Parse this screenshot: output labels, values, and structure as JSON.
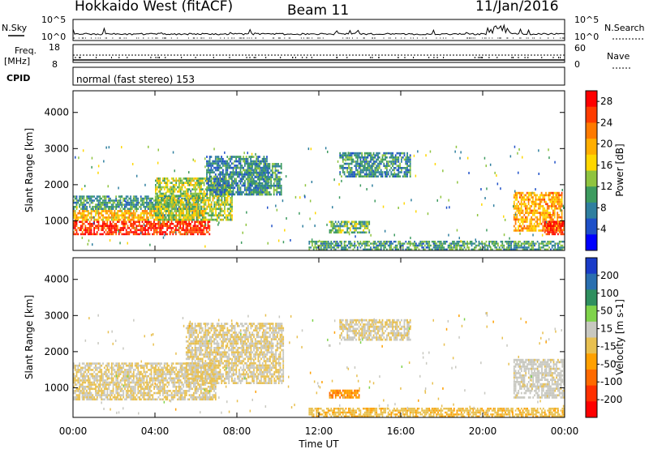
{
  "header": {
    "station": "Hokkaido West (fitACF)",
    "beam": "Beam 11",
    "date": "11/Jan/2016"
  },
  "aux_panel": {
    "nsky_label": "N.Sky",
    "nsearch_label": "N.Search",
    "noise_scale_top": "10^5",
    "noise_scale_bottom": "10^0",
    "freq_label": "Freq.",
    "freq_unit": "[MHz]",
    "freq_top": "18",
    "freq_bottom": "8",
    "nave_label": "Nave",
    "nave_top": "60",
    "nave_bottom": "0",
    "cpid_label": "CPID",
    "cpid_text": "normal (fast stereo) 153"
  },
  "colors": {
    "power": [
      "#0000ff",
      "#1e50c8",
      "#2f7f9f",
      "#3d9b5f",
      "#8fc43f",
      "#ffd700",
      "#ffae00",
      "#ff7a00",
      "#ff3c00",
      "#ff0000"
    ],
    "velocity": [
      "#1a3cc8",
      "#2a6fb0",
      "#2f8f5f",
      "#7fd34a",
      "#c8c8c0",
      "#e8c050",
      "#ffa000",
      "#ff6a00",
      "#ff3000",
      "#ff0000"
    ]
  },
  "chart_data": [
    {
      "type": "heatmap",
      "quantity": "power",
      "ylabel": "Slant Range [km]",
      "yticks": [
        1000,
        2000,
        3000,
        4000
      ],
      "ylim": [
        180,
        4600
      ],
      "xlim_hours": [
        0,
        24
      ],
      "colorbar": {
        "label": "Power [dB]",
        "ticks": [
          "4",
          "8",
          "12",
          "16",
          "20",
          "24",
          "28"
        ],
        "range": [
          0,
          30
        ]
      },
      "regions": [
        {
          "t0": 0.0,
          "t1": 6.7,
          "r0": 600,
          "r1": 1000,
          "level": 27
        },
        {
          "t0": 0.0,
          "t1": 6.5,
          "r0": 1000,
          "r1": 1300,
          "level": 19
        },
        {
          "t0": 0.0,
          "t1": 6.2,
          "r0": 1300,
          "r1": 1700,
          "level": 10
        },
        {
          "t0": 4.0,
          "t1": 7.8,
          "r0": 1000,
          "r1": 2200,
          "level": 14
        },
        {
          "t0": 6.5,
          "t1": 9.5,
          "r0": 1700,
          "r1": 2800,
          "level": 8
        },
        {
          "t0": 8.5,
          "t1": 10.2,
          "r0": 1700,
          "r1": 2600,
          "level": 10
        },
        {
          "t0": 13.0,
          "t1": 16.5,
          "r0": 2200,
          "r1": 2900,
          "level": 9
        },
        {
          "t0": 12.5,
          "t1": 14.5,
          "r0": 650,
          "r1": 1000,
          "level": 12
        },
        {
          "t0": 11.5,
          "t1": 24.0,
          "r0": 180,
          "r1": 450,
          "level": 10
        },
        {
          "t0": 21.5,
          "t1": 23.9,
          "r0": 700,
          "r1": 1800,
          "level": 20
        },
        {
          "t0": 23.0,
          "t1": 24.0,
          "r0": 600,
          "r1": 1000,
          "level": 27
        }
      ]
    },
    {
      "type": "heatmap",
      "quantity": "velocity",
      "ylabel": "Slant Range [km]",
      "xlabel": "Time UT",
      "xticks": [
        "00:00",
        "04:00",
        "08:00",
        "12:00",
        "16:00",
        "20:00",
        "00:00"
      ],
      "yticks": [
        1000,
        2000,
        3000,
        4000
      ],
      "ylim": [
        180,
        4600
      ],
      "xlim_hours": [
        0,
        24
      ],
      "colorbar": {
        "label": "Velocity [m s-1]",
        "ticks": [
          "200",
          "100",
          "50",
          "15",
          "-15",
          "-50",
          "-100",
          "-200"
        ],
        "range": [
          -250,
          250
        ]
      },
      "regions": [
        {
          "t0": 0.0,
          "t1": 7.0,
          "r0": 650,
          "r1": 1700,
          "level": 0
        },
        {
          "t0": 5.5,
          "t1": 10.3,
          "r0": 1100,
          "r1": 2800,
          "level": 0
        },
        {
          "t0": 12.5,
          "t1": 14.0,
          "r0": 700,
          "r1": 950,
          "level": -90
        },
        {
          "t0": 13.0,
          "t1": 16.5,
          "r0": 2300,
          "r1": 2900,
          "level": 5
        },
        {
          "t0": 21.5,
          "t1": 24.0,
          "r0": 700,
          "r1": 1800,
          "level": 20
        },
        {
          "t0": 11.5,
          "t1": 24.0,
          "r0": 180,
          "r1": 450,
          "level": -40
        }
      ]
    }
  ]
}
